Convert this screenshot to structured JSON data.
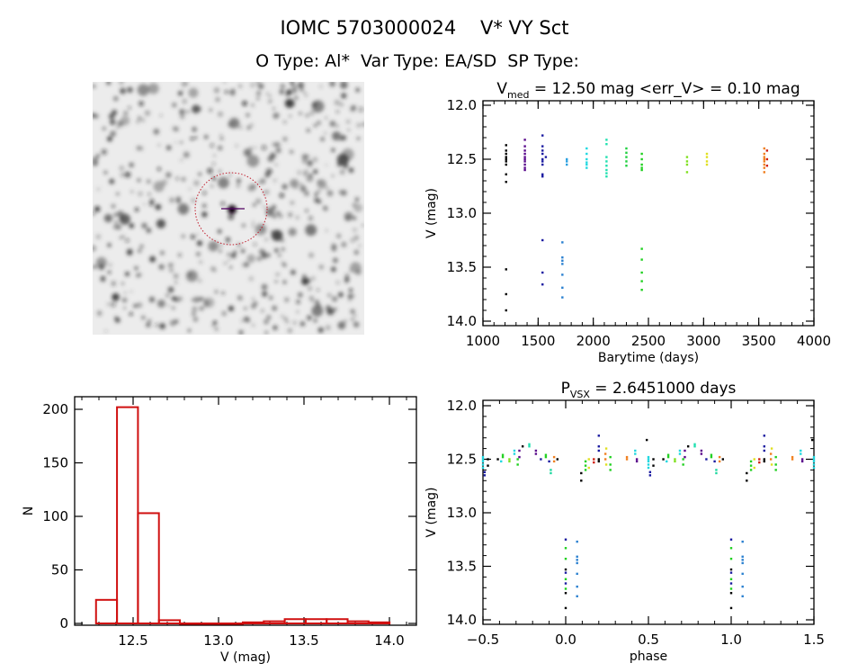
{
  "header": {
    "title": "IOMC 5703000024    V* VY Sct",
    "subtitle": "O Type: Al*  Var Type: EA/SD  SP Type:"
  },
  "image_panel": {
    "content": "finding-chart",
    "circle_color": "#c02030",
    "marker_color": "#500060"
  },
  "chart_data": [
    {
      "type": "scatter",
      "title_parts": {
        "main": "V",
        "sub": "med",
        "rest": " = 12.50 mag <err_V> = 0.10 mag"
      },
      "xlabel": "Barytime (days)",
      "ylabel": "V (mag)",
      "xlim": [
        1000,
        4000
      ],
      "ylim": [
        12.0,
        14.0
      ],
      "y_inverted": true,
      "xticks": [
        "1000",
        "1500",
        "2000",
        "2500",
        "3000",
        "3500",
        "4000"
      ],
      "yticks": [
        "12.0",
        "12.5",
        "13.0",
        "13.5",
        "14.0"
      ],
      "groups": [
        {
          "t": 1210,
          "color": "#000000",
          "v": [
            12.37,
            12.42,
            12.45,
            12.48,
            12.5,
            12.52,
            12.55,
            12.64,
            12.71,
            13.52,
            13.75,
            13.9
          ]
        },
        {
          "t": 1380,
          "color": "#5a0a8c",
          "v": [
            12.32,
            12.38,
            12.42,
            12.45,
            12.48,
            12.5,
            12.52,
            12.55,
            12.58,
            12.6
          ]
        },
        {
          "t": 1540,
          "color": "#1a1aa0",
          "v": [
            12.28,
            12.38,
            12.42,
            12.45,
            12.5,
            12.52,
            12.55,
            12.64,
            12.66,
            13.25,
            13.55,
            13.66
          ]
        },
        {
          "t": 1570,
          "color": "#1a1aa0",
          "v": [
            12.48
          ]
        },
        {
          "t": 1720,
          "color": "#2a80d0",
          "v": [
            13.27,
            13.41,
            13.44,
            13.47,
            13.57,
            13.69,
            13.78
          ]
        },
        {
          "t": 1760,
          "color": "#2aa0e0",
          "v": [
            12.5,
            12.52,
            12.55
          ]
        },
        {
          "t": 1940,
          "color": "#20d8e0",
          "v": [
            12.4,
            12.45,
            12.5,
            12.53,
            12.55,
            12.58
          ]
        },
        {
          "t": 2120,
          "color": "#20e0b0",
          "v": [
            12.32,
            12.36,
            12.48,
            12.52,
            12.56,
            12.6,
            12.63,
            12.66
          ]
        },
        {
          "t": 2300,
          "color": "#20d040",
          "v": [
            12.4,
            12.44,
            12.48,
            12.52,
            12.56
          ]
        },
        {
          "t": 2440,
          "color": "#20d020",
          "v": [
            12.45,
            12.5,
            12.55,
            12.58,
            12.6,
            13.33,
            13.43,
            13.55,
            13.63,
            13.71
          ]
        },
        {
          "t": 2850,
          "color": "#80e020",
          "v": [
            12.48,
            12.52,
            12.55,
            12.62
          ]
        },
        {
          "t": 3030,
          "color": "#e0e020",
          "v": [
            12.45,
            12.48,
            12.52,
            12.55
          ]
        },
        {
          "t": 3550,
          "color": "#f08020",
          "v": [
            12.4,
            12.45,
            12.48,
            12.5,
            12.52,
            12.55,
            12.58,
            12.62
          ]
        },
        {
          "t": 3575,
          "color": "#d02010",
          "v": [
            12.42,
            12.5,
            12.56
          ]
        }
      ]
    },
    {
      "type": "bar",
      "subtype": "histogram",
      "xlabel": "V (mag)",
      "ylabel": "N",
      "xlim": [
        12.16,
        14.16
      ],
      "ylim": [
        0,
        210
      ],
      "xticks": [
        "12.5",
        "13.0",
        "13.5",
        "14.0"
      ],
      "yticks": [
        "0",
        "50",
        "100",
        "150",
        "200"
      ],
      "bin_start": 12.283,
      "bin_width": 0.1227,
      "counts": [
        22,
        202,
        103,
        3,
        0,
        0,
        0,
        1,
        2,
        4,
        4,
        4,
        2,
        1
      ],
      "color": "#d01010"
    },
    {
      "type": "scatter",
      "title_parts": {
        "main": "P",
        "sub": "VSX",
        "rest": " = 2.6451000 days"
      },
      "xlabel": "phase",
      "ylabel": "V (mag)",
      "xlim": [
        -0.5,
        1.5
      ],
      "ylim": [
        12.0,
        14.0
      ],
      "y_inverted": true,
      "xticks": [
        "−0.5",
        "0.0",
        "0.5",
        "1.0",
        "1.5"
      ],
      "yticks": [
        "12.0",
        "12.5",
        "13.0",
        "13.5",
        "14.0"
      ],
      "period_days": 2.6451,
      "groups": [
        {
          "phase": 0.0,
          "color": "#1a1aa0",
          "v": [
            13.25,
            13.56,
            13.66
          ]
        },
        {
          "phase": 0.0,
          "color": "#20d020",
          "v": [
            13.33,
            13.43,
            13.62,
            13.71
          ]
        },
        {
          "phase": 0.0,
          "color": "#000000",
          "v": [
            13.53,
            13.75,
            13.89
          ]
        },
        {
          "phase": 0.069,
          "color": "#2a80d0",
          "v": [
            13.27,
            13.41,
            13.44,
            13.47,
            13.57,
            13.69,
            13.78
          ]
        },
        {
          "phase": 0.094,
          "color": "#000000",
          "v": [
            12.63,
            12.7
          ]
        },
        {
          "phase": 0.12,
          "color": "#20d020",
          "v": [
            12.52,
            12.56,
            12.6
          ]
        },
        {
          "phase": 0.14,
          "color": "#e0e020",
          "v": [
            12.5,
            12.58
          ]
        },
        {
          "phase": 0.17,
          "color": "#d02010",
          "v": [
            12.5,
            12.53
          ]
        },
        {
          "phase": 0.2,
          "color": "#1a1aa0",
          "v": [
            12.28,
            12.38,
            12.42
          ]
        },
        {
          "phase": 0.2,
          "color": "#000000",
          "v": [
            12.5,
            12.52
          ]
        },
        {
          "phase": 0.24,
          "color": "#f08020",
          "v": [
            12.45,
            12.5
          ]
        },
        {
          "phase": 0.245,
          "color": "#e0e020",
          "v": [
            12.4,
            12.55
          ]
        },
        {
          "phase": 0.27,
          "color": "#20d020",
          "v": [
            12.48,
            12.55,
            12.6
          ]
        },
        {
          "phase": 0.37,
          "color": "#f08020",
          "v": [
            12.48,
            12.5
          ]
        },
        {
          "phase": 0.42,
          "color": "#20d8e0",
          "v": [
            12.42,
            12.45
          ]
        },
        {
          "phase": 0.43,
          "color": "#5a0a8c",
          "v": [
            12.5,
            12.52
          ]
        },
        {
          "phase": 0.49,
          "color": "#000000",
          "v": [
            12.32
          ]
        },
        {
          "phase": 0.5,
          "color": "#20d8e0",
          "v": [
            12.48,
            12.5,
            12.52,
            12.55,
            12.58
          ]
        },
        {
          "phase": 0.51,
          "color": "#1a1aa0",
          "v": [
            12.62,
            12.65
          ]
        },
        {
          "phase": 0.53,
          "color": "#000000",
          "v": [
            12.5,
            12.56
          ]
        },
        {
          "phase": 0.59,
          "color": "#000000",
          "v": [
            12.5
          ]
        },
        {
          "phase": 0.61,
          "color": "#20d8e0",
          "v": [
            12.52
          ]
        },
        {
          "phase": 0.62,
          "color": "#20d020",
          "v": [
            12.46,
            12.48
          ]
        },
        {
          "phase": 0.66,
          "color": "#80e020",
          "v": [
            12.5,
            12.52
          ]
        },
        {
          "phase": 0.69,
          "color": "#20d8e0",
          "v": [
            12.42,
            12.45
          ]
        },
        {
          "phase": 0.71,
          "color": "#20d020",
          "v": [
            12.5,
            12.55
          ]
        },
        {
          "phase": 0.72,
          "color": "#5a0a8c",
          "v": [
            12.42,
            12.48
          ]
        },
        {
          "phase": 0.74,
          "color": "#000000",
          "v": [
            12.38
          ]
        },
        {
          "phase": 0.78,
          "color": "#20e0b0",
          "v": [
            12.36,
            12.38
          ]
        },
        {
          "phase": 0.82,
          "color": "#5a0a8c",
          "v": [
            12.42,
            12.45
          ]
        },
        {
          "phase": 0.85,
          "color": "#1a1aa0",
          "v": [
            12.5
          ]
        },
        {
          "phase": 0.88,
          "color": "#20d020",
          "v": [
            12.46,
            12.48
          ]
        },
        {
          "phase": 0.9,
          "color": "#1a1aa0",
          "v": [
            12.52
          ]
        },
        {
          "phase": 0.91,
          "color": "#20d8a0",
          "v": [
            12.6,
            12.63
          ]
        },
        {
          "phase": 0.93,
          "color": "#f08020",
          "v": [
            12.48,
            12.52
          ]
        },
        {
          "phase": 0.95,
          "color": "#000000",
          "v": [
            12.5
          ]
        }
      ]
    }
  ]
}
